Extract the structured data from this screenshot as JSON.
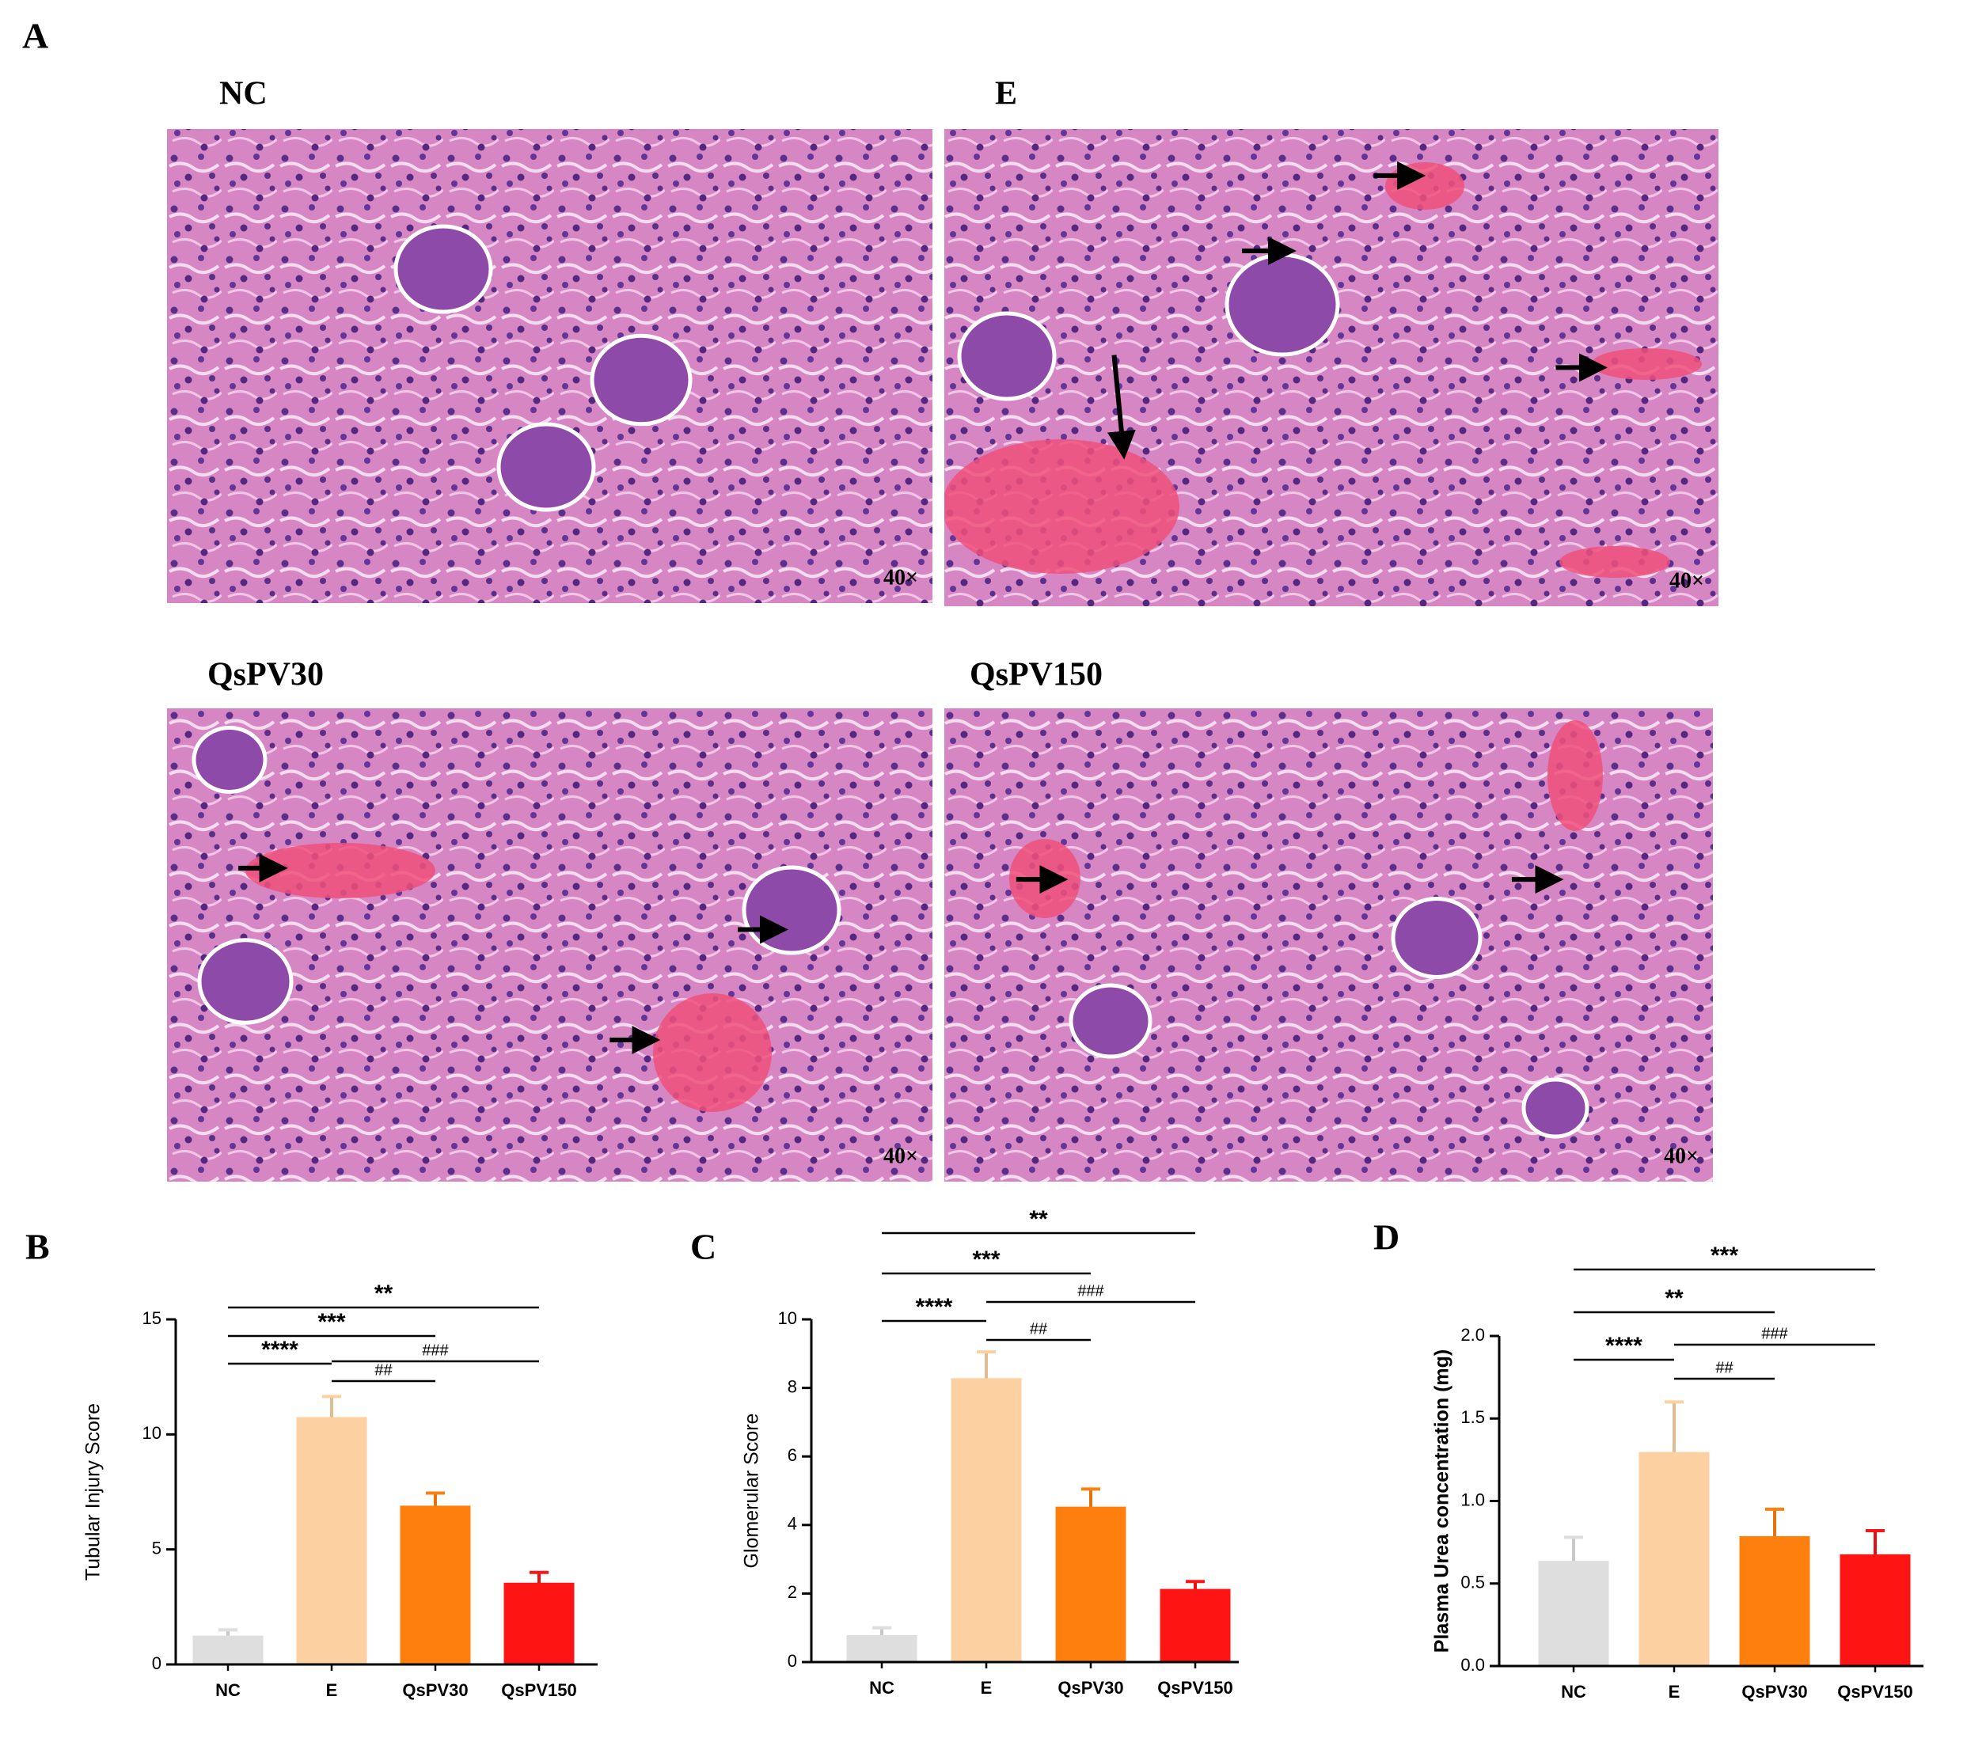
{
  "figure": {
    "panel_labels": [
      "A",
      "B",
      "C",
      "D"
    ],
    "micrographs": [
      {
        "label": "NC",
        "magnification": "40×"
      },
      {
        "label": "E",
        "magnification": "40×"
      },
      {
        "label": "QsPV30",
        "magnification": "40×"
      },
      {
        "label": "QsPV150",
        "magnification": "40×"
      }
    ]
  },
  "chart_data": [
    {
      "type": "bar",
      "y_label": "Tubular Injury Score",
      "categories": [
        "NC",
        "E",
        "QsPV30",
        "QsPV150"
      ],
      "values": [
        1.2,
        10.7,
        6.85,
        3.5
      ],
      "errors": [
        0.3,
        0.95,
        0.6,
        0.5
      ],
      "colors": [
        "#dedede",
        "#fcd0a0",
        "#ff7f0e",
        "#ff1414"
      ],
      "ylim": [
        0,
        15
      ],
      "yticks": [
        0,
        5,
        10,
        15
      ],
      "annotations": [
        {
          "from": 0,
          "to": 3,
          "label": "**"
        },
        {
          "from": 0,
          "to": 2,
          "label": "***"
        },
        {
          "from": 0,
          "to": 1,
          "label": "****"
        },
        {
          "from": 1,
          "to": 3,
          "label": "###"
        },
        {
          "from": 1,
          "to": 2,
          "label": "##"
        }
      ]
    },
    {
      "type": "bar",
      "y_label": "Glomerular Score",
      "categories": [
        "NC",
        "E",
        "QsPV30",
        "QsPV150"
      ],
      "values": [
        0.75,
        8.25,
        4.5,
        2.1
      ],
      "errors": [
        0.25,
        0.8,
        0.55,
        0.25
      ],
      "colors": [
        "#dedede",
        "#fcd0a0",
        "#ff7f0e",
        "#ff1414"
      ],
      "ylim": [
        0,
        10
      ],
      "yticks": [
        0,
        2,
        4,
        6,
        8,
        10
      ],
      "annotations": [
        {
          "from": 0,
          "to": 3,
          "label": "**"
        },
        {
          "from": 0,
          "to": 2,
          "label": "***"
        },
        {
          "from": 1,
          "to": 3,
          "label": "###"
        },
        {
          "from": 0,
          "to": 1,
          "label": "****"
        },
        {
          "from": 1,
          "to": 2,
          "label": "##"
        }
      ]
    },
    {
      "type": "bar",
      "y_label": "Plasma  Urea concentration (mg)",
      "categories": [
        "NC",
        "E",
        "QsPV30",
        "QsPV150"
      ],
      "values": [
        0.63,
        1.29,
        0.78,
        0.67
      ],
      "errors": [
        0.15,
        0.31,
        0.17,
        0.15
      ],
      "colors": [
        "#dedede",
        "#fcd0a0",
        "#ff7f0e",
        "#ff1414"
      ],
      "ylim": [
        0,
        2
      ],
      "yticks": [
        {
          "value": 0,
          "label": "0.0"
        },
        0.5,
        {
          "value": 1,
          "label": "1.0"
        },
        1.5,
        {
          "value": 2,
          "label": "2.0"
        }
      ],
      "annotations": [
        {
          "from": 0,
          "to": 3,
          "label": "***"
        },
        {
          "from": 0,
          "to": 2,
          "label": "**"
        },
        {
          "from": 1,
          "to": 3,
          "label": "###"
        },
        {
          "from": 0,
          "to": 1,
          "label": "****"
        },
        {
          "from": 1,
          "to": 2,
          "label": "##"
        }
      ]
    }
  ]
}
